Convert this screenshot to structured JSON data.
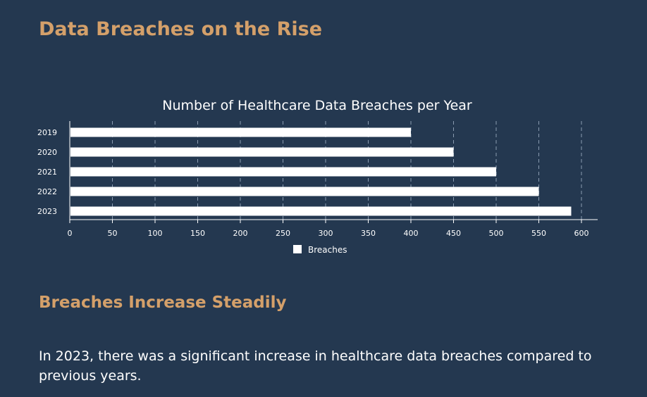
{
  "page": {
    "title": "Data Breaches on the Rise",
    "subtitle": "Breaches Increase Steadily",
    "body": "In 2023, there was a significant increase in healthcare data breaches compared to previous years."
  },
  "colors": {
    "background": "#243850",
    "heading": "#d4a06a",
    "bar": "#ffffff",
    "grid": "#8a9bb0",
    "text": "#ffffff"
  },
  "chart_data": {
    "type": "bar",
    "orientation": "horizontal",
    "title": "Number of Healthcare Data Breaches per Year",
    "categories": [
      "2019",
      "2020",
      "2021",
      "2022",
      "2023"
    ],
    "series": [
      {
        "name": "Breaches",
        "values": [
          400,
          450,
          500,
          550,
          588
        ]
      }
    ],
    "xlim": [
      0,
      600
    ],
    "xticks": [
      0,
      50,
      100,
      150,
      200,
      250,
      300,
      350,
      400,
      450,
      500,
      550,
      600
    ],
    "grid": "vertical-dashed",
    "legend": "bottom-center"
  }
}
